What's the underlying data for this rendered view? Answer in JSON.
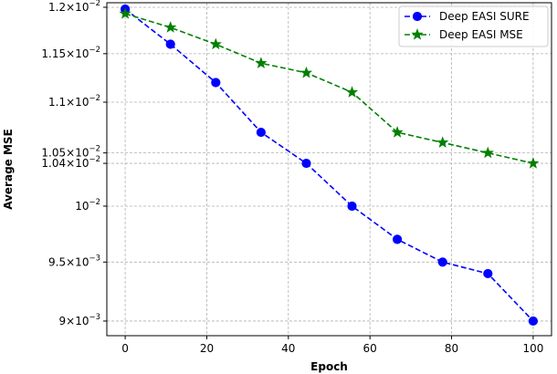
{
  "chart_data": {
    "type": "line",
    "title": "",
    "xlabel": "Epoch",
    "ylabel": "Average MSE",
    "xlim": [
      -4.5,
      104.5
    ],
    "ylim": [
      0.00888,
      0.01205
    ],
    "y_scale": "log",
    "grid": true,
    "legend_position": "top-right",
    "x": [
      0,
      11.1,
      22.2,
      33.3,
      44.4,
      55.6,
      66.7,
      77.8,
      88.9,
      100
    ],
    "series": [
      {
        "name": "Deep EASI SURE",
        "color": "#0000ff",
        "linestyle": "dashed",
        "marker": "circle",
        "values": [
          0.01198,
          0.0116,
          0.0112,
          0.0107,
          0.0104,
          0.01,
          0.0097,
          0.0095,
          0.0094,
          0.009
        ]
      },
      {
        "name": "Deep EASI MSE",
        "color": "#008000",
        "linestyle": "dashed",
        "marker": "star",
        "values": [
          0.01193,
          0.01178,
          0.0116,
          0.0114,
          0.0113,
          0.0111,
          0.0107,
          0.0106,
          0.0105,
          0.0104
        ]
      }
    ],
    "x_ticks": [
      0,
      20,
      40,
      60,
      80,
      100
    ],
    "x_tick_labels": [
      "0",
      "20",
      "40",
      "60",
      "80",
      "100"
    ],
    "y_ticks": [
      {
        "value": 0.012,
        "mantissa": "1.2",
        "exponent": "−2"
      },
      {
        "value": 0.0115,
        "mantissa": "1.15",
        "exponent": "−2"
      },
      {
        "value": 0.011,
        "mantissa": "1.1",
        "exponent": "−2"
      },
      {
        "value": 0.0105,
        "mantissa": "1.05",
        "exponent": "−2"
      },
      {
        "value": 0.0104,
        "mantissa": "1.04",
        "exponent": "−2"
      },
      {
        "value": 0.01,
        "mantissa": "",
        "exponent": "−2"
      },
      {
        "value": 0.0095,
        "mantissa": "9.5",
        "exponent": "−3"
      },
      {
        "value": 0.009,
        "mantissa": "9",
        "exponent": "−3"
      }
    ]
  }
}
